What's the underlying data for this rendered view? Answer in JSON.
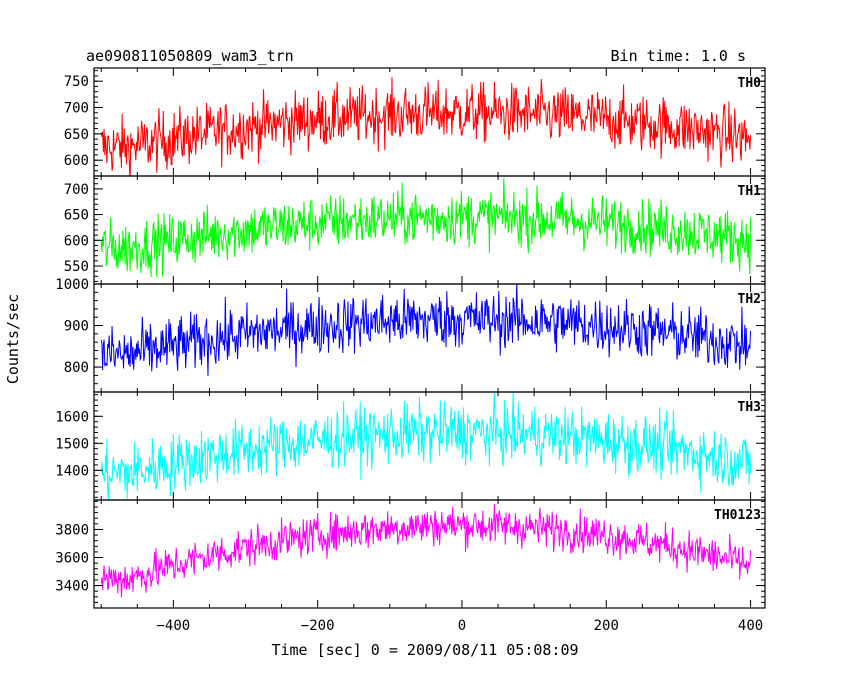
{
  "header": {
    "title": "ae090811050809_wam3_trn",
    "bin_time": "Bin time: 1.0 s"
  },
  "chart_data": {
    "type": "line",
    "xlabel": "Time [sec] 0 = 2009/08/11 05:08:09",
    "ylabel": "Counts/sec",
    "xlim": [
      -510,
      420
    ],
    "x_range_of_data": [
      -500,
      400
    ],
    "x_ticks": [
      -400,
      -200,
      0,
      200,
      400
    ],
    "x_tick_labels": [
      "−400",
      "−200",
      "0",
      "200",
      "400"
    ],
    "panels": [
      {
        "name": "TH0",
        "color": "#ff0000",
        "ylim": [
          570,
          775
        ],
        "ticks": [
          600,
          650,
          700,
          750
        ],
        "tick_labels": [
          "600",
          "650",
          "700",
          "750"
        ],
        "curve": {
          "edge": 625,
          "peak": 690,
          "noise": 28
        }
      },
      {
        "name": "TH1",
        "color": "#00ff00",
        "ylim": [
          515,
          725
        ],
        "ticks": [
          550,
          600,
          650,
          700
        ],
        "tick_labels": [
          "550",
          "600",
          "650",
          "700"
        ],
        "curve": {
          "edge": 585,
          "peak": 645,
          "noise": 27
        }
      },
      {
        "name": "TH2",
        "color": "#0000ff",
        "ylim": [
          740,
          1000
        ],
        "ticks": [
          800,
          900,
          1000
        ],
        "tick_labels": [
          "800",
          "900",
          "1000"
        ],
        "curve": {
          "edge": 830,
          "peak": 915,
          "noise": 35
        }
      },
      {
        "name": "TH3",
        "color": "#00ffff",
        "ylim": [
          1290,
          1690
        ],
        "ticks": [
          1400,
          1500,
          1600
        ],
        "tick_labels": [
          "1400",
          "1500",
          "1600"
        ],
        "curve": {
          "edge": 1390,
          "peak": 1540,
          "noise": 55
        }
      },
      {
        "name": "TH0123",
        "color": "#ff00ff",
        "ylim": [
          3240,
          4010
        ],
        "ticks": [
          3400,
          3600,
          3800
        ],
        "tick_labels": [
          "3400",
          "3600",
          "3800"
        ],
        "curve": {
          "edge": 3450,
          "peak": 3830,
          "noise": 70
        }
      }
    ]
  }
}
